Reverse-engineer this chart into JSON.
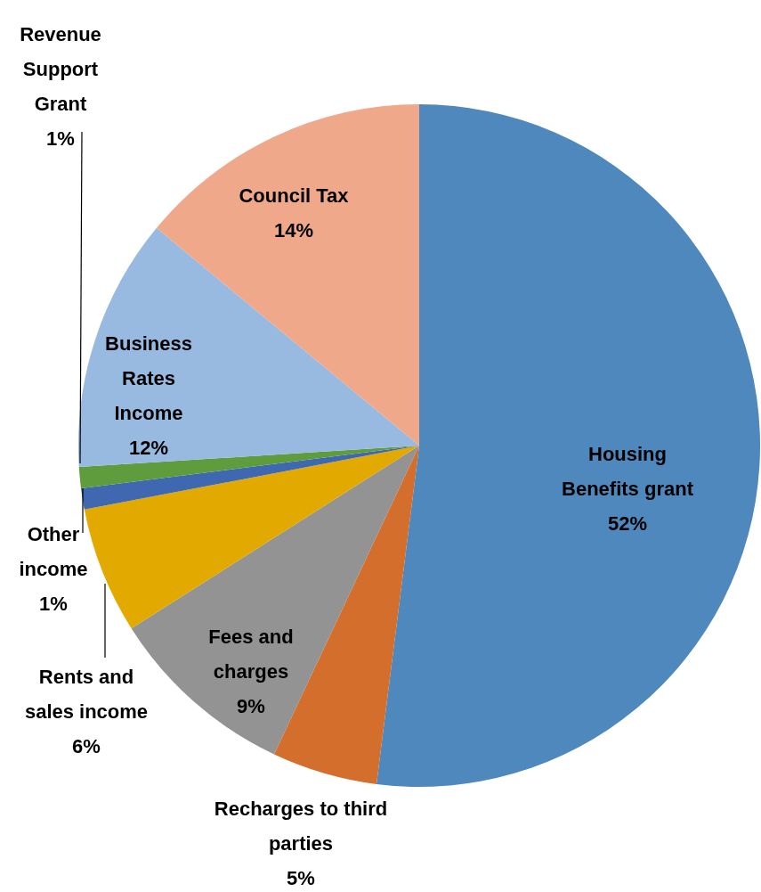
{
  "chart_data": {
    "type": "pie",
    "categories": [
      "Housing Benefits grant",
      "Recharges to third parties",
      "Fees and charges",
      "Rents and sales income",
      "Other income",
      "Revenue Support Grant",
      "Business Rates Income",
      "Council Tax"
    ],
    "values": [
      52,
      5,
      9,
      6,
      1,
      1,
      12,
      14
    ],
    "value_labels": [
      "52%",
      "5%",
      "9%",
      "6%",
      "1%",
      "1%",
      "12%",
      "14%"
    ],
    "colors": [
      "#4f88bd",
      "#d46e2c",
      "#939393",
      "#e2aa00",
      "#3f68b0",
      "#5f9c3e",
      "#98b9e0",
      "#f0a88a"
    ],
    "legend": false
  }
}
